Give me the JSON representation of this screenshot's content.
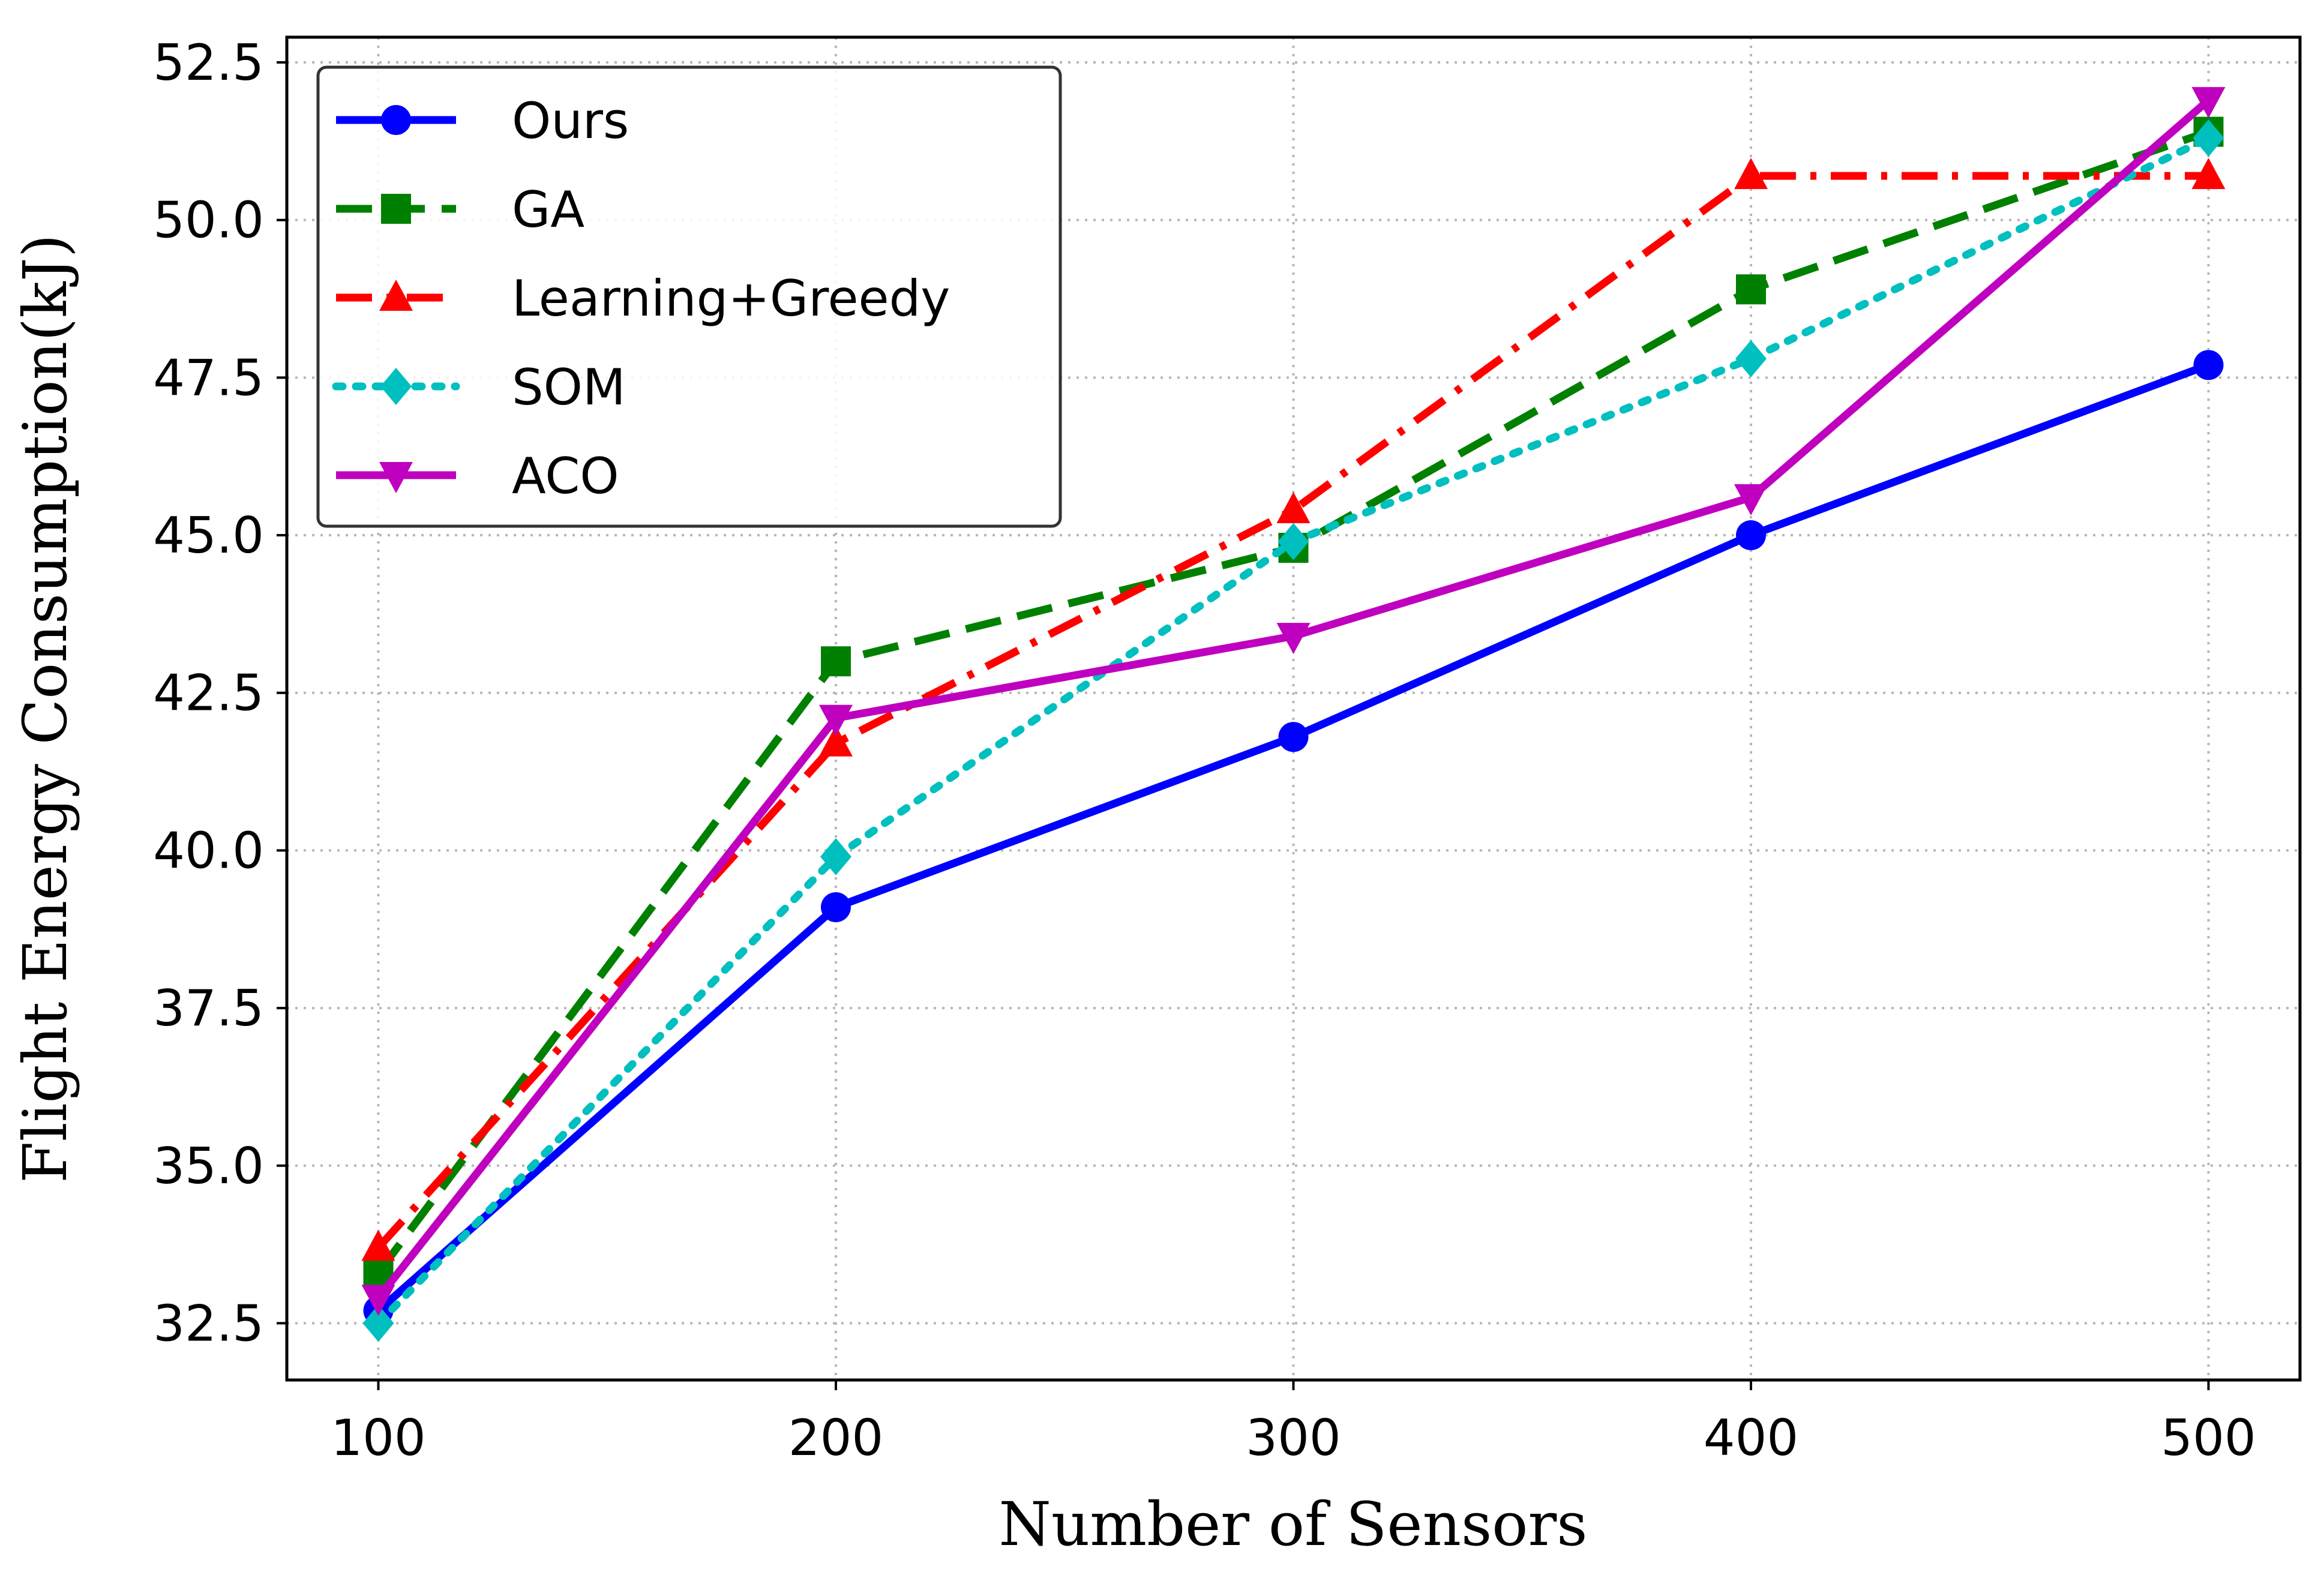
{
  "chart_data": {
    "type": "line",
    "xlabel": "Number of Sensors",
    "ylabel": "Flight Energy Consumption(kJ)",
    "x": [
      100,
      200,
      300,
      400,
      500
    ],
    "xlim": [
      80,
      520
    ],
    "ylim": [
      31.6,
      52.9
    ],
    "xticks": [
      100,
      200,
      300,
      400,
      500
    ],
    "yticks": [
      32.5,
      35.0,
      37.5,
      40.0,
      42.5,
      45.0,
      47.5,
      50.0,
      52.5
    ],
    "xtick_labels": [
      "100",
      "200",
      "300",
      "400",
      "500"
    ],
    "ytick_labels": [
      "32.5",
      "35.0",
      "37.5",
      "40.0",
      "42.5",
      "45.0",
      "47.5",
      "50.0",
      "52.5"
    ],
    "grid": true,
    "legend_position": "upper-left",
    "series": [
      {
        "name": "Ours",
        "values": [
          32.7,
          39.1,
          41.8,
          45.0,
          47.7
        ],
        "color": "#0000ff",
        "line_style": "solid",
        "marker": "circle"
      },
      {
        "name": "GA",
        "values": [
          33.3,
          43.0,
          44.8,
          48.9,
          51.4
        ],
        "color": "#008000",
        "line_style": "dashed",
        "marker": "square"
      },
      {
        "name": "Learning+Greedy",
        "values": [
          33.7,
          41.7,
          45.4,
          50.7,
          50.7
        ],
        "color": "#ff0000",
        "line_style": "dashdot",
        "marker": "triangle-up"
      },
      {
        "name": "SOM",
        "values": [
          32.5,
          39.9,
          44.9,
          47.8,
          51.3
        ],
        "color": "#00bfbf",
        "line_style": "dotted",
        "marker": "diamond"
      },
      {
        "name": "ACO",
        "values": [
          32.9,
          42.1,
          43.4,
          45.6,
          51.9
        ],
        "color": "#bf00bf",
        "line_style": "solid",
        "marker": "triangle-down"
      }
    ]
  }
}
